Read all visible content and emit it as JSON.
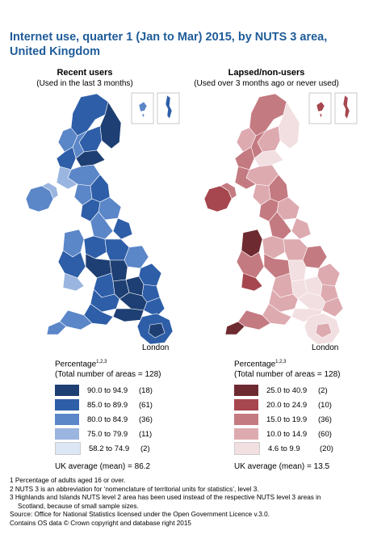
{
  "title": "Internet use, quarter 1 (Jan to Mar) 2015, by NUTS 3 area, United Kingdom",
  "left_panel": {
    "heading": "Recent users",
    "subheading": "(Used in the last 3 months)",
    "inset_label": "London",
    "legend_title": "Percentage",
    "legend_sup": "1,2,3",
    "legend_total": "(Total number of areas = 128)",
    "classes": [
      {
        "range": "90.0 to 94.9",
        "count": "(18)",
        "color": "#1e3f73"
      },
      {
        "range": "85.0 to 89.9",
        "count": "(61)",
        "color": "#2e5ea8"
      },
      {
        "range": "80.0 to 84.9",
        "count": "(36)",
        "color": "#5b86c8"
      },
      {
        "range": "75.0 to 79.9",
        "count": "(11)",
        "color": "#9ab5df"
      },
      {
        "range": "58.2 to 74.9",
        "count": "(2)",
        "color": "#dde6f4"
      }
    ],
    "average": "UK average (mean) = 86.2"
  },
  "right_panel": {
    "heading": "Lapsed/non-users",
    "subheading": "(Used over 3 months ago or never used)",
    "inset_label": "London",
    "legend_title": "Percentage",
    "legend_sup": "1,2,3",
    "legend_total": "(Total number of areas = 128)",
    "classes": [
      {
        "range": "25.0 to 40.9",
        "count": "(2)",
        "color": "#6e2a31"
      },
      {
        "range": "20.0 to 24.9",
        "count": "(10)",
        "color": "#a6474f"
      },
      {
        "range": "15.0 to 19.9",
        "count": "(36)",
        "color": "#c47a81"
      },
      {
        "range": "10.0 to 14.9",
        "count": "(60)",
        "color": "#ddaab0"
      },
      {
        "range": "4.6 to 9.9",
        "count": "(20)",
        "color": "#f2dfe1"
      }
    ],
    "average": "UK average (mean) = 13.5"
  },
  "notes": [
    "1 Percentage of adults aged 16 or over.",
    "2 NUTS 3 is an abbreviation for ‘nomenclature of territorial units for statistics’, level 3.",
    "3 Highlands and Islands NUTS level 2 area has been used instead of the respective NUTS level 3 areas in",
    "Scotland, because of small sample sizes.",
    "Source: Office for National Statistics licensed under the Open Government Licence v.3.0.",
    "Contains OS data © Crown copyright and database right 2015"
  ]
}
